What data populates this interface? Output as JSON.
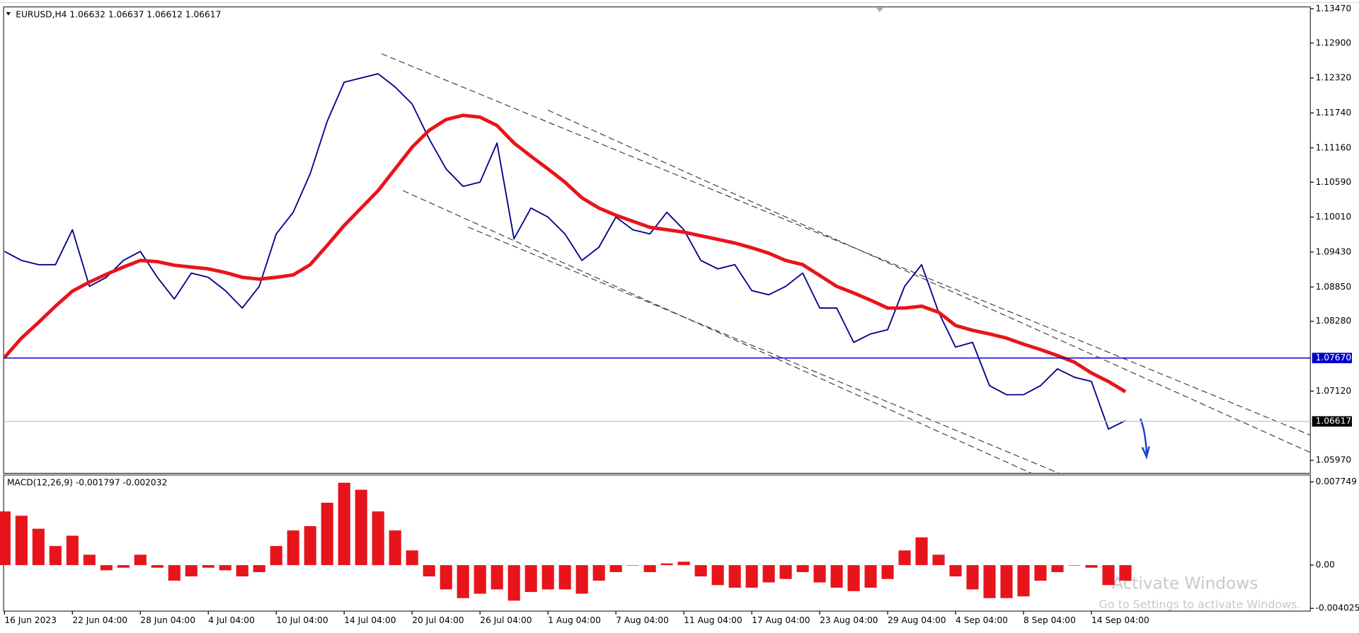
{
  "chart_data": [
    {
      "type": "line",
      "title": "EURUSD,H4  1.06632 1.06637 1.06612 1.06617",
      "categories": [
        "16 Jun 2023",
        null,
        null,
        null,
        "22 Jun 04:00",
        null,
        null,
        null,
        "28 Jun 04:00",
        null,
        null,
        null,
        "4 Jul 04:00",
        null,
        null,
        null,
        "10 Jul 04:00",
        null,
        null,
        null,
        "14 Jul 04:00",
        null,
        null,
        null,
        "20 Jul 04:00",
        null,
        null,
        null,
        "26 Jul 04:00",
        null,
        null,
        null,
        "1 Aug 04:00",
        null,
        null,
        null,
        "7 Aug 04:00",
        null,
        null,
        null,
        "11 Aug 04:00",
        null,
        null,
        null,
        "17 Aug 04:00",
        null,
        null,
        null,
        "23 Aug 04:00",
        null,
        null,
        null,
        "29 Aug 04:00",
        null,
        null,
        null,
        "4 Sep 04:00",
        null,
        null,
        null,
        "8 Sep 04:00",
        null,
        null,
        null,
        "14 Sep 04:00",
        null,
        null
      ],
      "series": [
        {
          "color": "#00008b",
          "width": 1.5,
          "values": [
            1.0944,
            1.0929,
            1.0922,
            1.0922,
            1.098,
            1.0886,
            1.0901,
            1.0929,
            1.0944,
            1.0901,
            1.0865,
            1.0908,
            1.0901,
            1.0879,
            1.085,
            1.0886,
            1.0973,
            1.1009,
            1.1073,
            1.116,
            1.1225,
            1.1232,
            1.1239,
            1.1217,
            1.1189,
            1.1131,
            1.1081,
            1.1052,
            1.1059,
            1.1124,
            1.0965,
            1.1016,
            1.1001,
            1.0973,
            1.0929,
            1.0951,
            1.1001,
            1.098,
            1.0973,
            1.1009,
            1.098,
            1.0929,
            1.0915,
            1.0922,
            1.0879,
            1.0872,
            1.0886,
            1.0908,
            1.085,
            1.085,
            1.0793,
            1.0807,
            1.0814,
            1.0886,
            1.0922,
            1.0843,
            1.0785,
            1.0793,
            1.0721,
            1.0706,
            1.0706,
            1.0721,
            1.0749,
            1.0735,
            1.0728,
            1.0649,
            1.0663
          ]
        },
        {
          "color": "#e8141b",
          "width": 4,
          "values": [
            1.0768,
            1.08,
            1.0826,
            1.0853,
            1.0878,
            1.0893,
            1.0906,
            1.0918,
            1.0929,
            1.0927,
            1.0921,
            1.0918,
            1.0915,
            1.0909,
            1.0901,
            1.0898,
            1.0901,
            1.0905,
            1.0922,
            1.0954,
            1.0987,
            1.1016,
            1.1045,
            1.1081,
            1.1117,
            1.1145,
            1.1163,
            1.117,
            1.1167,
            1.1153,
            1.1124,
            1.1102,
            1.1081,
            1.1059,
            1.1033,
            1.1016,
            1.1004,
            1.0994,
            1.0984,
            1.098,
            1.0976,
            1.097,
            1.0964,
            1.0958,
            1.095,
            1.0941,
            1.0929,
            1.0922,
            1.0904,
            1.0886,
            1.0875,
            1.0863,
            1.085,
            1.085,
            1.0853,
            1.0843,
            1.0821,
            1.0813,
            1.0807,
            1.08,
            1.079,
            1.0781,
            1.0771,
            1.076,
            1.0742,
            1.0728,
            1.0711
          ]
        }
      ],
      "ylim": [
        1.0577,
        1.135
      ],
      "yticks": [
        {
          "value": 1.1347,
          "label": "1.13470"
        },
        {
          "value": 1.129,
          "label": "1.12900"
        },
        {
          "value": 1.1232,
          "label": "1.12320"
        },
        {
          "value": 1.1174,
          "label": "1.11740"
        },
        {
          "value": 1.1116,
          "label": "1.11160"
        },
        {
          "value": 1.1059,
          "label": "1.10590"
        },
        {
          "value": 1.1001,
          "label": "1.10010"
        },
        {
          "value": 1.0943,
          "label": "1.09430"
        },
        {
          "value": 1.0885,
          "label": "1.08850"
        },
        {
          "value": 1.0828,
          "label": "1.08280"
        },
        {
          "value": 1.0712,
          "label": "1.07120"
        },
        {
          "value": 1.0597,
          "label": "1.05970"
        }
      ],
      "hline": {
        "value": 1.0767,
        "label": "1.07670",
        "color": "#0000cd"
      },
      "current_price": {
        "value": 1.06617,
        "label": "1.06617",
        "color": "#c0c0c0"
      }
    },
    {
      "type": "bar",
      "title": "MACD(12,26,9) -0.001797 -0.002032",
      "color": "#e8141b",
      "values": [
        0.005,
        0.0046,
        0.00339,
        0.00178,
        0.00274,
        0.00097,
        -0.00048,
        -0.00024,
        0.00097,
        -0.00024,
        -0.00145,
        -0.00105,
        -0.00024,
        -0.00048,
        -0.00105,
        -0.00065,
        0.00178,
        0.00323,
        0.00363,
        0.00581,
        0.00767,
        0.00702,
        0.005,
        0.00323,
        0.00137,
        -0.00105,
        -0.00226,
        -0.00307,
        -0.00266,
        -0.00226,
        -0.00331,
        -0.0025,
        -0.00226,
        -0.00226,
        -0.00266,
        -0.00145,
        -0.00065,
        0,
        -0.00065,
        0.00016,
        0.00032,
        -0.00105,
        -0.00186,
        -0.0021,
        -0.0021,
        -0.00161,
        -0.00129,
        -0.00065,
        -0.00161,
        -0.0021,
        -0.00242,
        -0.0021,
        -0.00129,
        0.00137,
        0.00258,
        0.00097,
        -0.00105,
        -0.00226,
        -0.00307,
        -0.00307,
        -0.00291,
        -0.00145,
        -0.00065,
        0,
        -0.00024,
        -0.00186,
        -0.00145
      ],
      "ylim": [
        -0.00428,
        0.00839
      ],
      "yticks": [
        0.007749,
        {
          "value": 0,
          "label": "0.00"
        },
        -0.004025
      ]
    }
  ],
  "watermark": {
    "title": "Activate Windows",
    "subtitle": "Go to Settings to activate Windows."
  }
}
